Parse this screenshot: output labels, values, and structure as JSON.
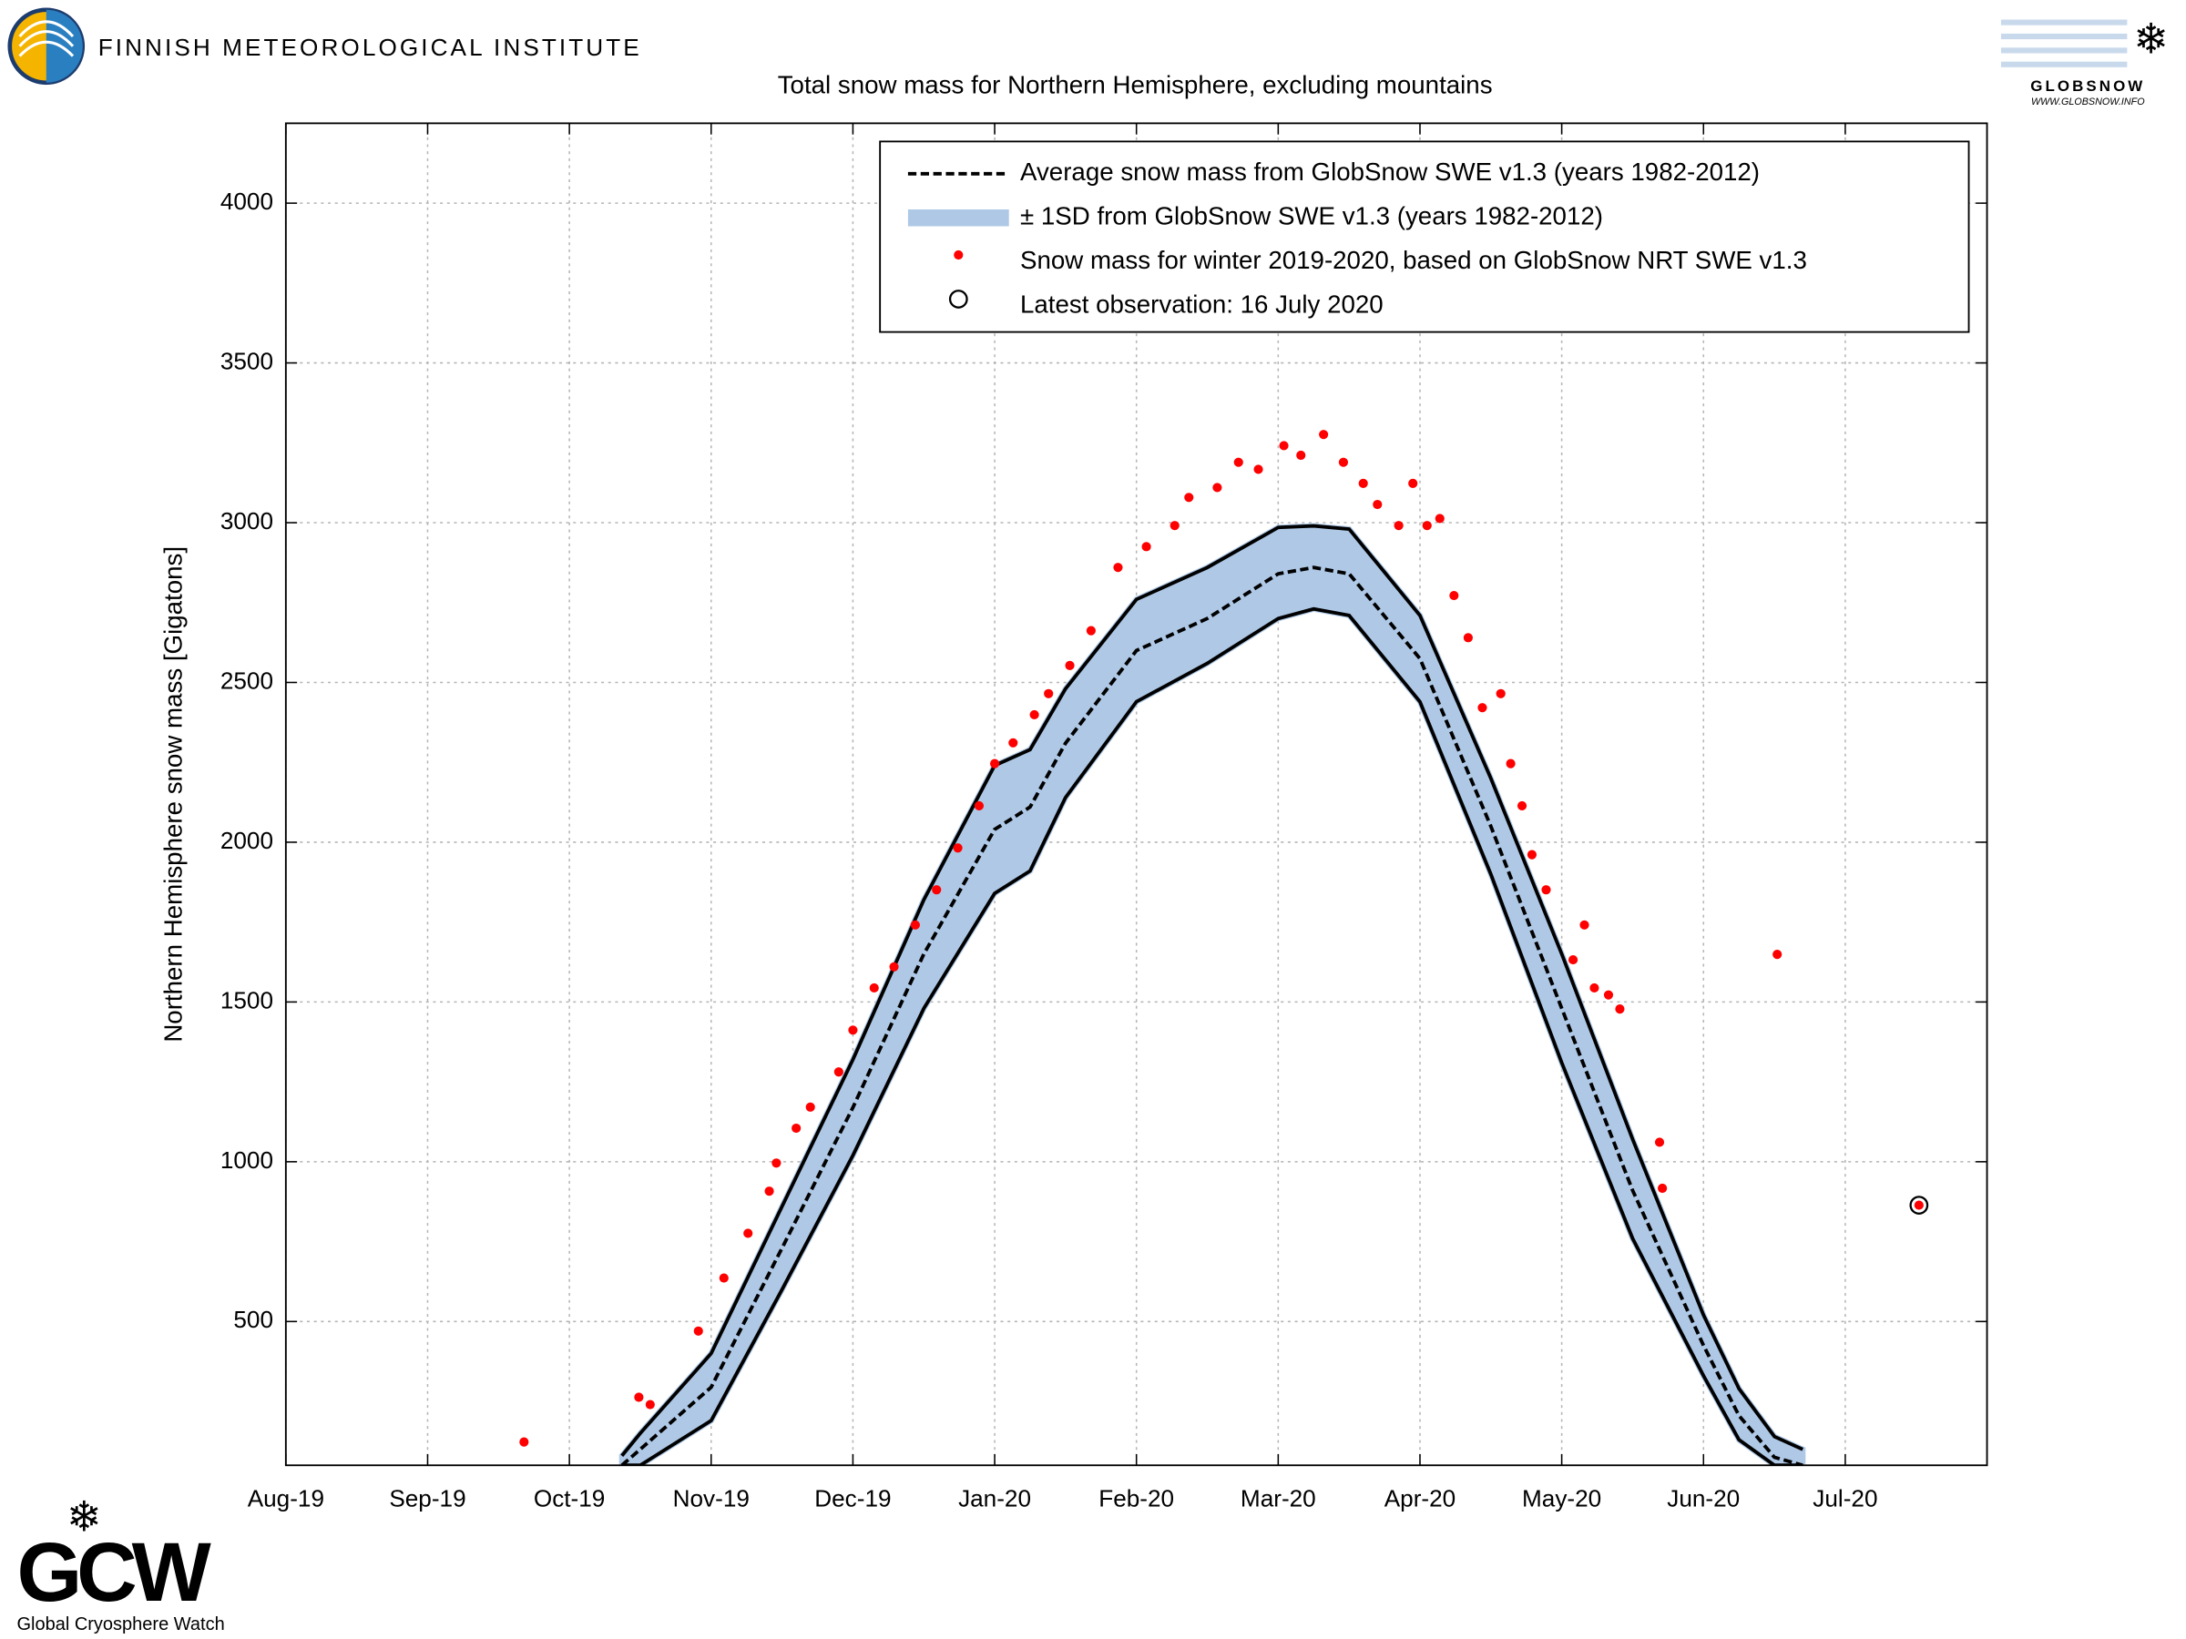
{
  "header": {
    "institute": "FINNISH METEOROLOGICAL INSTITUTE"
  },
  "logos": {
    "globsnow": "GLOBSNOW",
    "globsnow_url": "WWW.GLOBSNOW.INFO",
    "gcw": "GCW",
    "gcw_name": "Global Cryosphere Watch"
  },
  "chart_data": {
    "type": "line",
    "title": "Total snow mass for Northern Hemisphere, excluding mountains",
    "y_label": "Northern Hemisphere snow mass [Gigatons]",
    "xlim": [
      0,
      12
    ],
    "xticks": [
      {
        "value": 0,
        "label": "Aug-19"
      },
      {
        "value": 1,
        "label": "Sep-19"
      },
      {
        "value": 2,
        "label": "Oct-19"
      },
      {
        "value": 3,
        "label": "Nov-19"
      },
      {
        "value": 4,
        "label": "Dec-19"
      },
      {
        "value": 5,
        "label": "Jan-20"
      },
      {
        "value": 6,
        "label": "Feb-20"
      },
      {
        "value": 7,
        "label": "Mar-20"
      },
      {
        "value": 8,
        "label": "Apr-20"
      },
      {
        "value": 9,
        "label": "May-20"
      },
      {
        "value": 10,
        "label": "Jun-20"
      },
      {
        "value": 11,
        "label": "Jul-20"
      }
    ],
    "ylim": [
      50,
      4250
    ],
    "yticks": [
      500,
      1000,
      1500,
      2000,
      2500,
      3000,
      3500,
      4000
    ],
    "grid": true,
    "legend": "upper right",
    "series": [
      {
        "name": "Average snow mass from GlobSnow SWE v1.3 (years 1982-2012)",
        "style": "dashed",
        "color": "#000000",
        "x": [
          2.37,
          2.5,
          3,
          3.5,
          4,
          4.5,
          5,
          5.25,
          5.5,
          6,
          6.5,
          7,
          7.25,
          7.5,
          8,
          8.5,
          9,
          9.5,
          10,
          10.25,
          10.5,
          10.7
        ],
        "values": [
          50,
          100,
          294,
          730,
          1170,
          1650,
          2040,
          2110,
          2310,
          2600,
          2700,
          2840,
          2860,
          2840,
          2575,
          2050,
          1480,
          910,
          425,
          205,
          75,
          50
        ]
      },
      {
        "name": "± 1SD from GlobSnow SWE v1.3 (years 1982-2012)",
        "style": "band",
        "color": "#aec8e6",
        "edge_color": "#000000",
        "x": [
          2.37,
          2.5,
          3,
          3.5,
          4,
          4.5,
          5,
          5.25,
          5.5,
          6,
          6.5,
          7,
          7.25,
          7.5,
          8,
          8.5,
          9,
          9.5,
          10,
          10.25,
          10.5,
          10.7
        ],
        "values": [
          50,
          50,
          190,
          600,
          1020,
          1480,
          1840,
          1910,
          2140,
          2440,
          2560,
          2700,
          2730,
          2710,
          2440,
          1900,
          1310,
          760,
          330,
          130,
          50,
          50
        ],
        "upper": [
          80,
          150,
          400,
          860,
          1320,
          1820,
          2240,
          2290,
          2480,
          2760,
          2860,
          2985,
          2990,
          2980,
          2710,
          2200,
          1650,
          1070,
          520,
          290,
          140,
          100
        ]
      },
      {
        "name": "Snow mass for winter 2019-2020, based on GlobSnow NRT SWE v1.3",
        "style": "points",
        "color": "#ff0000",
        "x": [
          1.68,
          2.49,
          2.57,
          2.91,
          3.09,
          3.26,
          3.41,
          3.46,
          3.6,
          3.7,
          3.9,
          4.0,
          4.15,
          4.29,
          4.44,
          4.59,
          4.74,
          4.89,
          5.0,
          5.13,
          5.28,
          5.38,
          5.53,
          5.68,
          5.87,
          6.07,
          6.27,
          6.37,
          6.57,
          6.72,
          6.86,
          7.04,
          7.16,
          7.32,
          7.46,
          7.6,
          7.7,
          7.85,
          7.95,
          8.05,
          8.14,
          8.24,
          8.34,
          8.44,
          8.57,
          8.64,
          8.72,
          8.79,
          8.89,
          9.08,
          9.16,
          9.23,
          9.33,
          9.41,
          9.69,
          9.71,
          10.52,
          11.52
        ],
        "values": [
          123,
          263,
          240,
          470,
          636,
          776,
          908,
          996,
          1105,
          1171,
          1281,
          1412,
          1544,
          1610,
          1741,
          1851,
          1982,
          2114,
          2246,
          2311,
          2399,
          2465,
          2553,
          2662,
          2860,
          2925,
          2991,
          3079,
          3110,
          3189,
          3167,
          3241,
          3211,
          3276,
          3189,
          3123,
          3057,
          2991,
          3123,
          2991,
          3013,
          2772,
          2640,
          2421,
          2465,
          2246,
          2114,
          1961,
          1851,
          1632,
          1741,
          1544,
          1522,
          1478,
          1061,
          917,
          1649,
          864
        ]
      },
      {
        "name": "Latest observation: 16 July 2020",
        "style": "marker",
        "color": "#000000",
        "x": [
          11.52
        ],
        "values": [
          864
        ]
      }
    ]
  }
}
